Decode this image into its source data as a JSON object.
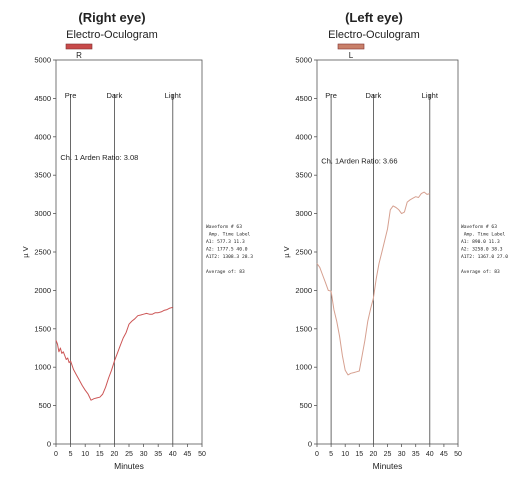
{
  "colors": {
    "trace": "#c04545",
    "axis": "#555555",
    "marker": "#444444",
    "text": "#222222",
    "background": "#ffffff"
  },
  "chart_data": [
    {
      "type": "line",
      "heading": "(Right eye)",
      "title": "Electro-Oculogram",
      "legend_tag": "R",
      "legend_color": "#c84a4a",
      "trace_color": "#cc5555",
      "xlabel": "Minutes",
      "ylabel": "µ V",
      "xlim": [
        0,
        50
      ],
      "ylim": [
        0,
        5000
      ],
      "xticks": [
        "0",
        "5",
        "10",
        "15",
        "20",
        "25",
        "30",
        "35",
        "40",
        "45",
        "50"
      ],
      "yticks": [
        "0",
        "500",
        "1000",
        "1500",
        "2000",
        "2500",
        "3000",
        "3500",
        "4000",
        "4500",
        "5000"
      ],
      "markers": [
        {
          "label": "Pre",
          "x": 5
        },
        {
          "label": "Dark",
          "x": 20
        },
        {
          "label": "Light",
          "x": 40
        }
      ],
      "annotation": "Ch. 1 Arden Ratio: 3.08",
      "annotation_x": 1.5,
      "annotation_y": 3700,
      "side_text": [
        "Waveform # 63",
        "          Amp.   Time Label",
        "A1:       577.3   11.3",
        "A2:      1777.5   40.0",
        "A1T2:    1308.3   28.3",
        "",
        "Average of:  83"
      ],
      "series": [
        {
          "x": [
            0,
            0.5,
            1,
            1.5,
            2,
            2.5,
            3,
            3.5,
            4,
            4.5,
            5,
            6,
            7,
            8,
            9,
            10,
            11,
            12,
            13,
            14,
            15,
            16,
            17,
            18,
            19,
            20,
            21,
            22,
            23,
            24,
            25,
            26,
            27,
            28,
            29,
            30,
            31,
            32,
            33,
            34,
            35,
            36,
            37,
            38,
            39,
            40
          ],
          "y": [
            1350,
            1300,
            1200,
            1250,
            1180,
            1200,
            1150,
            1100,
            1120,
            1060,
            1080,
            970,
            900,
            830,
            760,
            700,
            650,
            570,
            590,
            600,
            610,
            650,
            740,
            860,
            960,
            1080,
            1180,
            1280,
            1380,
            1450,
            1560,
            1600,
            1630,
            1670,
            1680,
            1690,
            1700,
            1690,
            1690,
            1710,
            1710,
            1720,
            1740,
            1750,
            1770,
            1780
          ]
        }
      ]
    },
    {
      "type": "line",
      "heading": "(Left eye)",
      "title": "Electro-Oculogram",
      "legend_tag": "L",
      "legend_color": "#c9806a",
      "trace_color": "#d6a090",
      "xlabel": "Minutes",
      "ylabel": "µ V",
      "xlim": [
        0,
        50
      ],
      "ylim": [
        0,
        5000
      ],
      "xticks": [
        "0",
        "5",
        "10",
        "15",
        "20",
        "25",
        "30",
        "35",
        "40",
        "45",
        "50"
      ],
      "yticks": [
        "0",
        "500",
        "1000",
        "1500",
        "2000",
        "2500",
        "3000",
        "3500",
        "4000",
        "4500",
        "5000"
      ],
      "markers": [
        {
          "label": "Pre",
          "x": 5
        },
        {
          "label": "Dark",
          "x": 20
        },
        {
          "label": "Light",
          "x": 40
        }
      ],
      "annotation": "Ch. 1Arden Ratio: 3.66",
      "annotation_x": 1.5,
      "annotation_y": 3650,
      "side_text": [
        "Waveform # 63",
        "          Amp.   Time Label",
        "A1:       890.0   11.3",
        "A2:      3258.0   38.3",
        "A1T2:    1367.0   27.0",
        "",
        "Average of:  83"
      ],
      "series": [
        {
          "x": [
            0,
            1,
            2,
            3,
            4,
            5,
            6,
            7,
            8,
            9,
            10,
            11,
            12,
            13,
            14,
            15,
            16,
            17,
            18,
            19,
            20,
            21,
            22,
            23,
            24,
            25,
            26,
            27,
            28,
            29,
            30,
            31,
            32,
            33,
            34,
            35,
            36,
            37,
            38,
            39,
            40
          ],
          "y": [
            2350,
            2300,
            2200,
            2100,
            2000,
            1990,
            1750,
            1600,
            1400,
            1150,
            960,
            900,
            920,
            930,
            940,
            950,
            1150,
            1350,
            1600,
            1760,
            1900,
            2150,
            2350,
            2500,
            2650,
            2800,
            3050,
            3100,
            3080,
            3050,
            3000,
            3020,
            3150,
            3180,
            3200,
            3220,
            3210,
            3260,
            3280,
            3250,
            3260
          ]
        }
      ]
    }
  ]
}
